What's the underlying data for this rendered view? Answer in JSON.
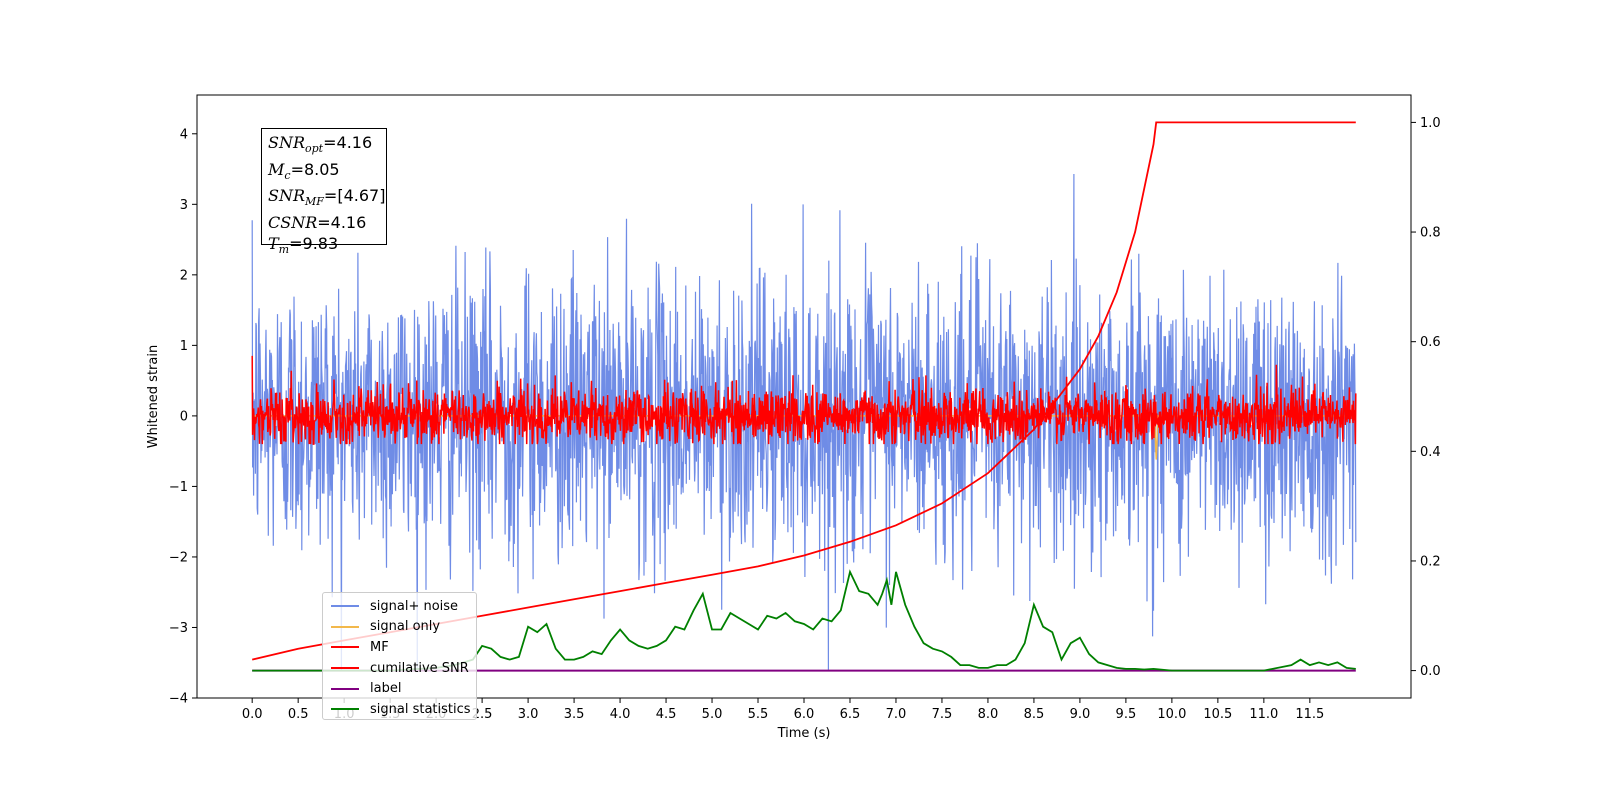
{
  "chart_data": {
    "type": "line",
    "xlabel": "Time (s)",
    "ylabel": "Whitened strain",
    "xlim": [
      -0.6,
      12.6
    ],
    "ylim": [
      -4.0,
      4.55
    ],
    "y2lim": [
      -0.05,
      1.05
    ],
    "x_ticks": [
      "0.0",
      "0.5",
      "1.0",
      "1.5",
      "2.0",
      "2.5",
      "3.0",
      "3.5",
      "4.0",
      "4.5",
      "5.0",
      "5.5",
      "6.0",
      "6.5",
      "7.0",
      "7.5",
      "8.0",
      "8.5",
      "9.0",
      "9.5",
      "10.0",
      "10.5",
      "11.0",
      "11.5"
    ],
    "y_ticks": [
      "4",
      "3",
      "2",
      "1",
      "0",
      "−1",
      "−2",
      "−3",
      "−4"
    ],
    "y2_ticks": [
      "1.0",
      "0.8",
      "0.6",
      "0.4",
      "0.2",
      "0.0"
    ],
    "grid": false,
    "legend_position": "lower-left",
    "stats_box": {
      "snr_opt": "=4.16",
      "mc": "=8.05",
      "snr_mf": "=[4.67]",
      "csnr": "=4.16",
      "tm": "=9.83"
    },
    "series": [
      {
        "name": "signal+ noise",
        "color": "#6f8ce6",
        "axis": "left",
        "mean": 0.0,
        "std": 1.0,
        "x_range": [
          0.0,
          12.0
        ]
      },
      {
        "name": "signal only",
        "color": "#f2b84b",
        "axis": "left",
        "note_value_at_9.83": -0.62
      },
      {
        "name": "MF",
        "color": "#ff0000",
        "axis": "left",
        "mean": 0.0,
        "std": 0.2,
        "x_range": [
          0.0,
          12.0
        ]
      },
      {
        "name": "cumilative SNR",
        "color": "#ff0000",
        "axis": "right",
        "x": [
          0.0,
          0.5,
          1.0,
          1.5,
          2.0,
          2.5,
          3.0,
          3.5,
          4.0,
          4.5,
          5.0,
          5.5,
          6.0,
          6.5,
          7.0,
          7.5,
          8.0,
          8.5,
          9.0,
          9.2,
          9.4,
          9.6,
          9.7,
          9.8,
          9.83,
          12.0
        ],
        "y": [
          0.02,
          0.04,
          0.055,
          0.07,
          0.085,
          0.1,
          0.115,
          0.13,
          0.145,
          0.16,
          0.175,
          0.19,
          0.21,
          0.235,
          0.265,
          0.305,
          0.36,
          0.44,
          0.55,
          0.61,
          0.69,
          0.8,
          0.88,
          0.96,
          1.0,
          1.0
        ]
      },
      {
        "name": "label",
        "color": "#800080",
        "axis": "right",
        "x": [
          0.0,
          12.0
        ],
        "y": [
          0.0,
          0.0
        ]
      },
      {
        "name": "signal statistics",
        "color": "#008000",
        "axis": "right",
        "x": [
          0.0,
          0.5,
          1.0,
          1.5,
          2.0,
          2.2,
          2.4,
          2.5,
          2.6,
          2.7,
          2.8,
          2.9,
          3.0,
          3.1,
          3.2,
          3.3,
          3.4,
          3.5,
          3.6,
          3.7,
          3.8,
          3.9,
          4.0,
          4.1,
          4.2,
          4.3,
          4.4,
          4.5,
          4.6,
          4.7,
          4.8,
          4.9,
          5.0,
          5.1,
          5.2,
          5.3,
          5.4,
          5.5,
          5.6,
          5.7,
          5.8,
          5.9,
          6.0,
          6.1,
          6.2,
          6.3,
          6.4,
          6.5,
          6.6,
          6.7,
          6.8,
          6.85,
          6.9,
          6.95,
          7.0,
          7.1,
          7.2,
          7.3,
          7.4,
          7.5,
          7.6,
          7.7,
          7.8,
          7.9,
          8.0,
          8.1,
          8.2,
          8.3,
          8.4,
          8.5,
          8.6,
          8.7,
          8.8,
          8.9,
          9.0,
          9.1,
          9.2,
          9.3,
          9.4,
          9.5,
          9.6,
          9.7,
          9.8,
          10.0,
          10.5,
          11.0,
          11.3,
          11.4,
          11.5,
          11.6,
          11.7,
          11.8,
          11.9,
          12.0
        ],
        "y": [
          0.0,
          0.0,
          0.0,
          0.0,
          0.005,
          0.01,
          0.02,
          0.045,
          0.04,
          0.025,
          0.02,
          0.025,
          0.08,
          0.07,
          0.085,
          0.04,
          0.02,
          0.02,
          0.025,
          0.035,
          0.03,
          0.055,
          0.075,
          0.055,
          0.045,
          0.04,
          0.045,
          0.055,
          0.08,
          0.075,
          0.11,
          0.14,
          0.075,
          0.075,
          0.105,
          0.095,
          0.085,
          0.075,
          0.1,
          0.095,
          0.105,
          0.09,
          0.085,
          0.075,
          0.095,
          0.09,
          0.11,
          0.18,
          0.145,
          0.14,
          0.12,
          0.14,
          0.165,
          0.12,
          0.18,
          0.12,
          0.08,
          0.05,
          0.04,
          0.035,
          0.025,
          0.01,
          0.01,
          0.005,
          0.005,
          0.01,
          0.01,
          0.02,
          0.05,
          0.12,
          0.08,
          0.07,
          0.02,
          0.05,
          0.06,
          0.03,
          0.015,
          0.01,
          0.005,
          0.003,
          0.003,
          0.002,
          0.003,
          0.0,
          0.0,
          0.0,
          0.01,
          0.02,
          0.01,
          0.015,
          0.01,
          0.015,
          0.005,
          0.003
        ]
      }
    ]
  }
}
